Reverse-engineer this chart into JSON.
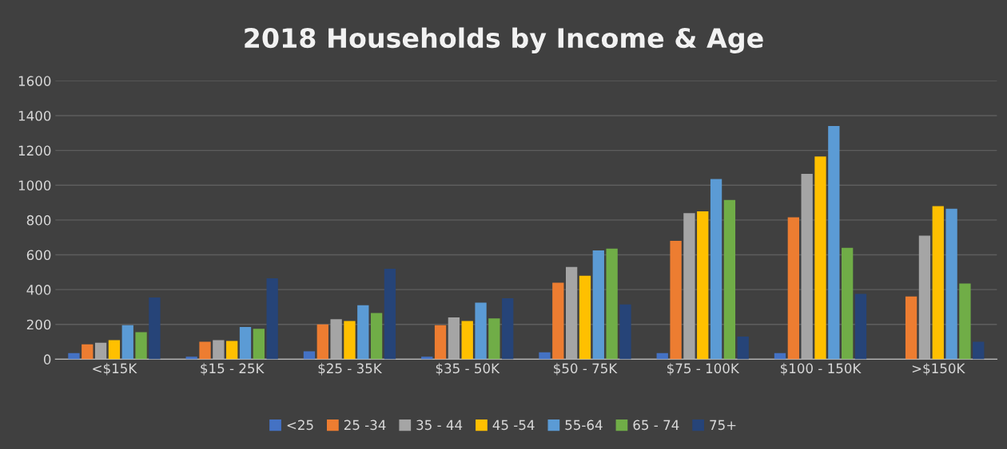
{
  "chart_data": {
    "type": "bar",
    "title": "2018 Households by Income & Age",
    "categories": [
      "<$15K",
      "$15 - 25K",
      "$25 - 35K",
      "$35 - 50K",
      "$50 - 75K",
      "$75 - 100K",
      "$100 - 150K",
      ">$150K"
    ],
    "series": [
      {
        "name": "<25",
        "color": "#4472c4",
        "values": [
          35,
          15,
          45,
          15,
          40,
          35,
          35,
          0
        ]
      },
      {
        "name": "25 -34",
        "color": "#ed7d31",
        "values": [
          85,
          100,
          200,
          195,
          440,
          680,
          815,
          360
        ]
      },
      {
        "name": "35 - 44",
        "color": "#a5a5a5",
        "values": [
          95,
          110,
          230,
          240,
          530,
          840,
          1065,
          710
        ]
      },
      {
        "name": "45 -54",
        "color": "#ffc000",
        "values": [
          110,
          105,
          220,
          220,
          480,
          850,
          1165,
          880
        ]
      },
      {
        "name": "55-64",
        "color": "#5b9bd5",
        "values": [
          195,
          185,
          310,
          325,
          625,
          1035,
          1340,
          865
        ]
      },
      {
        "name": "65 - 74",
        "color": "#70ad47",
        "values": [
          155,
          175,
          265,
          235,
          635,
          915,
          640,
          435
        ]
      },
      {
        "name": "75+",
        "color": "#264478",
        "values": [
          355,
          465,
          520,
          350,
          315,
          130,
          375,
          100
        ]
      }
    ],
    "ylim": [
      0,
      1600
    ],
    "yticks": [
      0,
      200,
      400,
      600,
      800,
      1000,
      1200,
      1400,
      1600
    ],
    "grid": "y",
    "legend": "bottom"
  }
}
